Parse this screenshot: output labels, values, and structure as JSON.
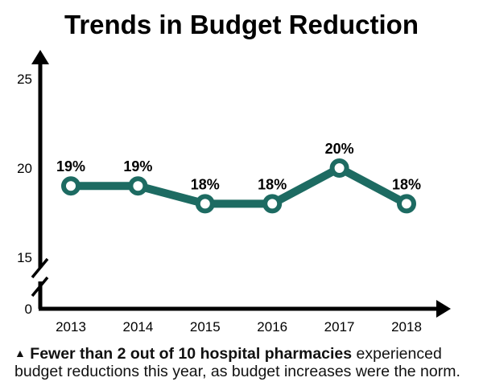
{
  "chart_data": {
    "type": "line",
    "title": "Trends in Budget Reduction",
    "categories": [
      "2013",
      "2014",
      "2015",
      "2016",
      "2017",
      "2018"
    ],
    "values": [
      19,
      19,
      18,
      18,
      20,
      18
    ],
    "data_labels": [
      "19%",
      "19%",
      "18%",
      "18%",
      "20%",
      "18%"
    ],
    "y_ticks": [
      "25",
      "20",
      "15",
      "0"
    ],
    "ylim": [
      15,
      25
    ],
    "axis_break": true,
    "grid": false,
    "color": "#1d6b62"
  },
  "note": {
    "bullet_icon": "triangle-up",
    "bold": "Fewer than 2 out of 10 hospital pharmacies",
    "rest": " experienced budget reductions this year, as budget increases were the norm."
  }
}
